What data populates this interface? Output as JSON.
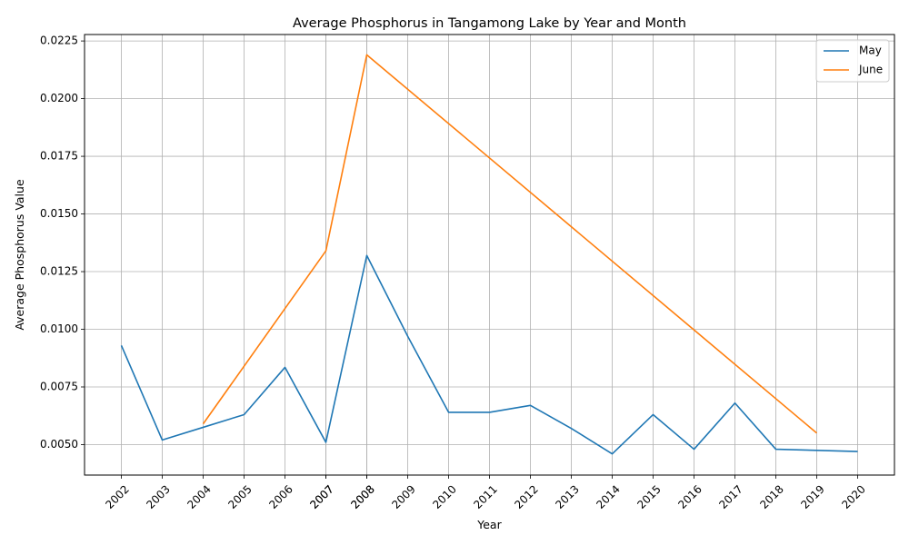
{
  "chart_data": {
    "type": "line",
    "title": "Average Phosphorus in Tangamong Lake by Year and Month",
    "xlabel": "Year",
    "ylabel": "Average Phosphorus Value",
    "x_tick_labels": [
      "2002",
      "2003",
      "2004",
      "2005",
      "2006",
      "2007",
      "2007",
      "2008",
      "2008",
      "2009",
      "2010",
      "2011",
      "2012",
      "2013",
      "2014",
      "2015",
      "2016",
      "2017",
      "2018",
      "2019",
      "2020"
    ],
    "y_ticks": [
      0.005,
      0.0075,
      0.01,
      0.0125,
      0.015,
      0.0175,
      0.02,
      0.0225
    ],
    "y_tick_labels": [
      "0.0050",
      "0.0075",
      "0.0100",
      "0.0125",
      "0.0150",
      "0.0175",
      "0.0200",
      "0.0225"
    ],
    "xlim": [
      2001.1,
      2020.9
    ],
    "ylim": [
      0.00368,
      0.02278
    ],
    "grid": true,
    "legend_position": "top-right",
    "series": [
      {
        "name": "May",
        "color": "#1f77b4",
        "x": [
          2002,
          2003,
          2004,
          2005,
          2006,
          2007,
          2008,
          2009,
          2010,
          2011,
          2012,
          2013,
          2014,
          2015,
          2016,
          2017,
          2018,
          2019,
          2020
        ],
        "y": [
          0.0093,
          0.0052,
          0.00575,
          0.0063,
          0.00835,
          0.0051,
          0.0132,
          0.0097,
          0.0064,
          0.0064,
          0.0067,
          0.0057,
          0.0046,
          0.0063,
          0.0048,
          0.0068,
          0.0048,
          0.00475,
          0.0047
        ]
      },
      {
        "name": "June",
        "color": "#ff7f0e",
        "x": [
          2004,
          2007,
          2008,
          2019
        ],
        "y": [
          0.0059,
          0.0134,
          0.0219,
          0.0055
        ]
      }
    ]
  }
}
